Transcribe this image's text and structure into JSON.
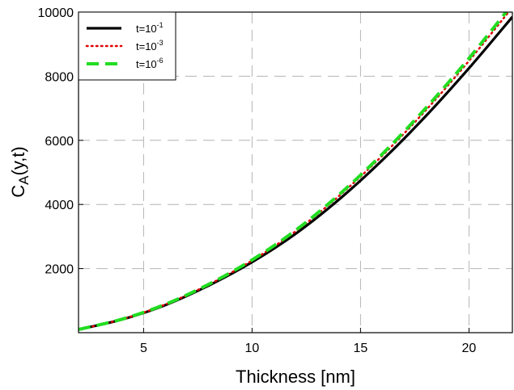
{
  "chart_data": {
    "type": "line",
    "xlabel": "Thickness [nm]",
    "ylabel_main": "C",
    "ylabel_sub": "A",
    "ylabel_rest": "(y,t)",
    "xlim": [
      2,
      22
    ],
    "ylim": [
      0,
      10000
    ],
    "xticks": [
      5,
      10,
      15,
      20
    ],
    "yticks": [
      2000,
      4000,
      6000,
      8000,
      10000
    ],
    "grid": true,
    "legend_position": "top-left",
    "x": [
      2,
      4,
      6,
      8,
      10,
      12,
      14,
      16,
      18,
      20,
      22
    ],
    "series": [
      {
        "name_base": "t=10",
        "name_exp": "-1",
        "color": "#000000",
        "style": "solid",
        "values": [
          100,
          410,
          860,
          1470,
          2200,
          3080,
          4150,
          5380,
          6750,
          8250,
          9850
        ]
      },
      {
        "name_base": "t=10",
        "name_exp": "-3",
        "color": "#e00000",
        "style": "dotted",
        "values": [
          100,
          415,
          880,
          1500,
          2250,
          3160,
          4260,
          5520,
          6930,
          8480,
          10150
        ]
      },
      {
        "name_base": "t=10",
        "name_exp": "-6",
        "color": "#22dd22",
        "style": "dashed",
        "values": [
          100,
          420,
          885,
          1510,
          2270,
          3190,
          4300,
          5570,
          7000,
          8560,
          10250
        ]
      }
    ]
  }
}
